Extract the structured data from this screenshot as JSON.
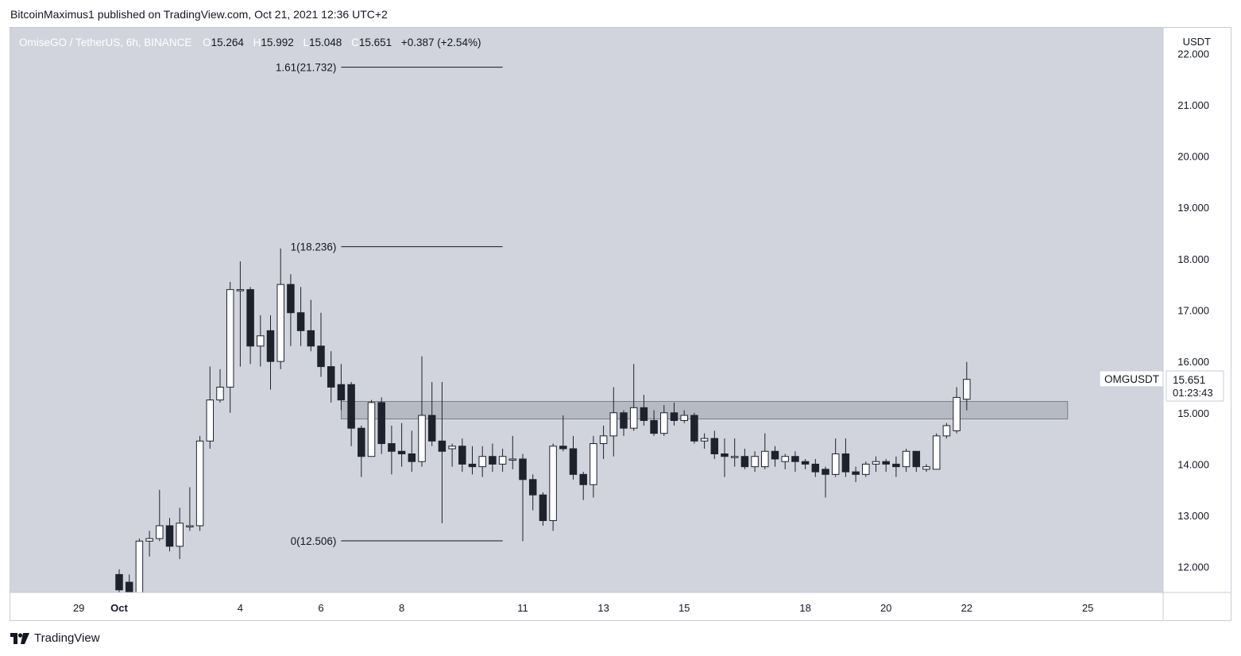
{
  "publish_line": "BitcoinMaximus1 published on TradingView.com, Oct 21, 2021 12:36 UTC+2",
  "brand": "TradingView",
  "colors": {
    "background": "#d1d4dc",
    "axis_bg": "#ffffff",
    "up": "#ffffff",
    "down": "#1e222d",
    "wick": "#1e222d",
    "zone": "#b2b5be"
  },
  "legend": {
    "symbol": "OmiseGO / TetherUS, 6h, BINANCE",
    "o_label": "O",
    "o": "15.264",
    "h_label": "H",
    "h": "15.992",
    "l_label": "L",
    "l": "15.048",
    "c_label": "C",
    "c": "15.651",
    "change": "+0.387 (+2.54%)"
  },
  "price_tag": {
    "symbol": "OMGUSDT",
    "price": "15.651",
    "countdown": "01:23:43"
  },
  "chart_data": {
    "type": "candlestick",
    "interval": "6h",
    "y_unit": "USDT",
    "ylim": [
      11.5,
      22.5
    ],
    "y_ticks": [
      "12.000",
      "13.000",
      "14.000",
      "15.000",
      "16.000",
      "17.000",
      "18.000",
      "19.000",
      "20.000",
      "21.000",
      "22.000"
    ],
    "x_ticks": [
      {
        "label": "29",
        "index": -4
      },
      {
        "label": "Oct",
        "index": 0
      },
      {
        "label": "4",
        "index": 12
      },
      {
        "label": "6",
        "index": 20
      },
      {
        "label": "8",
        "index": 28
      },
      {
        "label": "11",
        "index": 40
      },
      {
        "label": "13",
        "index": 48
      },
      {
        "label": "15",
        "index": 56
      },
      {
        "label": "18",
        "index": 68
      },
      {
        "label": "20",
        "index": 76
      },
      {
        "label": "22",
        "index": 84
      },
      {
        "label": "25",
        "index": 96
      }
    ],
    "fib_levels": [
      {
        "label": "1.61(21.732)",
        "value": 21.732
      },
      {
        "label": "1(18.236)",
        "value": 18.236
      },
      {
        "label": "0(12.506)",
        "value": 12.506
      }
    ],
    "fib_index_range": [
      22,
      38
    ],
    "resistance_zone": {
      "low": 14.88,
      "high": 15.22,
      "index_range": [
        22,
        94
      ]
    },
    "candles": [
      [
        11.85,
        11.55,
        11.95,
        11.5
      ],
      [
        11.7,
        11.5,
        11.85,
        11.4
      ],
      [
        11.5,
        12.5,
        12.55,
        11.45
      ],
      [
        12.5,
        12.55,
        12.7,
        12.2
      ],
      [
        12.55,
        12.8,
        13.5,
        12.5
      ],
      [
        12.8,
        12.4,
        12.95,
        12.3
      ],
      [
        12.4,
        12.85,
        13.15,
        12.15
      ],
      [
        12.8,
        12.8,
        13.55,
        12.7
      ],
      [
        12.8,
        14.45,
        14.55,
        12.7
      ],
      [
        14.45,
        15.25,
        15.9,
        14.3
      ],
      [
        15.25,
        15.5,
        15.85,
        15.2
      ],
      [
        15.5,
        17.4,
        17.55,
        15.0
      ],
      [
        17.4,
        17.4,
        17.95,
        15.9
      ],
      [
        17.4,
        16.3,
        17.45,
        15.95
      ],
      [
        16.3,
        16.5,
        16.9,
        15.9
      ],
      [
        16.6,
        16.0,
        16.9,
        15.45
      ],
      [
        16.0,
        17.5,
        18.2,
        15.85
      ],
      [
        17.5,
        16.95,
        17.7,
        16.3
      ],
      [
        16.95,
        16.6,
        17.45,
        16.3
      ],
      [
        16.6,
        16.3,
        17.2,
        16.2
      ],
      [
        16.3,
        15.9,
        16.95,
        15.7
      ],
      [
        15.9,
        15.5,
        16.2,
        15.2
      ],
      [
        15.55,
        15.25,
        15.95,
        15.05
      ],
      [
        15.55,
        14.7,
        15.6,
        14.35
      ],
      [
        14.7,
        14.15,
        14.75,
        13.75
      ],
      [
        14.15,
        15.2,
        15.25,
        14.2
      ],
      [
        15.2,
        14.4,
        15.3,
        14.2
      ],
      [
        14.4,
        14.25,
        14.75,
        13.8
      ],
      [
        14.25,
        14.2,
        14.8,
        13.95
      ],
      [
        14.2,
        14.05,
        14.65,
        13.85
      ],
      [
        14.05,
        14.95,
        16.1,
        13.95
      ],
      [
        14.95,
        14.45,
        15.6,
        14.35
      ],
      [
        14.45,
        14.25,
        15.6,
        12.85
      ],
      [
        14.3,
        14.35,
        14.4,
        13.95
      ],
      [
        14.35,
        14.0,
        14.5,
        13.85
      ],
      [
        14.0,
        13.95,
        14.35,
        13.8
      ],
      [
        13.95,
        14.15,
        14.35,
        13.75
      ],
      [
        14.15,
        14.0,
        14.4,
        13.85
      ],
      [
        14.0,
        14.15,
        14.3,
        13.85
      ],
      [
        14.1,
        14.1,
        14.55,
        13.9
      ],
      [
        14.1,
        13.7,
        14.2,
        12.5
      ],
      [
        13.7,
        13.4,
        13.8,
        13.1
      ],
      [
        13.4,
        12.9,
        13.45,
        12.8
      ],
      [
        12.9,
        14.35,
        14.4,
        12.7
      ],
      [
        14.35,
        14.3,
        14.95,
        14.25
      ],
      [
        14.3,
        13.8,
        14.55,
        13.7
      ],
      [
        13.8,
        13.6,
        13.85,
        13.3
      ],
      [
        13.6,
        14.4,
        14.55,
        13.35
      ],
      [
        14.4,
        14.55,
        14.75,
        14.1
      ],
      [
        14.55,
        15.0,
        15.5,
        14.15
      ],
      [
        15.0,
        14.7,
        15.05,
        14.55
      ],
      [
        14.7,
        15.1,
        15.95,
        14.65
      ],
      [
        15.1,
        14.85,
        15.35,
        14.75
      ],
      [
        14.85,
        14.6,
        15.05,
        14.55
      ],
      [
        14.6,
        15.0,
        15.15,
        14.55
      ],
      [
        15.0,
        14.85,
        15.2,
        14.75
      ],
      [
        14.85,
        14.95,
        15.05,
        14.8
      ],
      [
        14.95,
        14.45,
        15.0,
        14.4
      ],
      [
        14.45,
        14.5,
        14.6,
        14.3
      ],
      [
        14.5,
        14.2,
        14.65,
        14.1
      ],
      [
        14.2,
        14.15,
        14.5,
        13.75
      ],
      [
        14.15,
        14.15,
        14.5,
        13.95
      ],
      [
        14.15,
        13.95,
        14.3,
        13.9
      ],
      [
        13.95,
        14.15,
        14.25,
        13.85
      ],
      [
        13.95,
        14.25,
        14.6,
        13.9
      ],
      [
        14.25,
        14.1,
        14.35,
        13.95
      ],
      [
        14.05,
        14.15,
        14.2,
        13.9
      ],
      [
        14.15,
        14.05,
        14.25,
        13.85
      ],
      [
        14.05,
        14.0,
        14.1,
        13.9
      ],
      [
        14.0,
        13.85,
        14.1,
        13.75
      ],
      [
        13.9,
        13.8,
        13.95,
        13.35
      ],
      [
        13.8,
        14.2,
        14.5,
        13.75
      ],
      [
        14.2,
        13.85,
        14.5,
        13.75
      ],
      [
        13.85,
        13.8,
        13.95,
        13.65
      ],
      [
        13.8,
        14.0,
        14.05,
        13.75
      ],
      [
        14.0,
        14.05,
        14.15,
        13.85
      ],
      [
        14.05,
        14.0,
        14.1,
        13.85
      ],
      [
        14.0,
        13.95,
        14.15,
        13.75
      ],
      [
        13.95,
        14.25,
        14.3,
        13.85
      ],
      [
        14.25,
        13.95,
        14.25,
        13.85
      ],
      [
        13.9,
        13.95,
        14.0,
        13.85
      ],
      [
        13.9,
        14.55,
        14.6,
        13.9
      ],
      [
        14.55,
        14.75,
        14.8,
        14.5
      ],
      [
        14.65,
        15.3,
        15.5,
        14.6
      ],
      [
        15.264,
        15.651,
        15.992,
        15.048
      ]
    ]
  }
}
